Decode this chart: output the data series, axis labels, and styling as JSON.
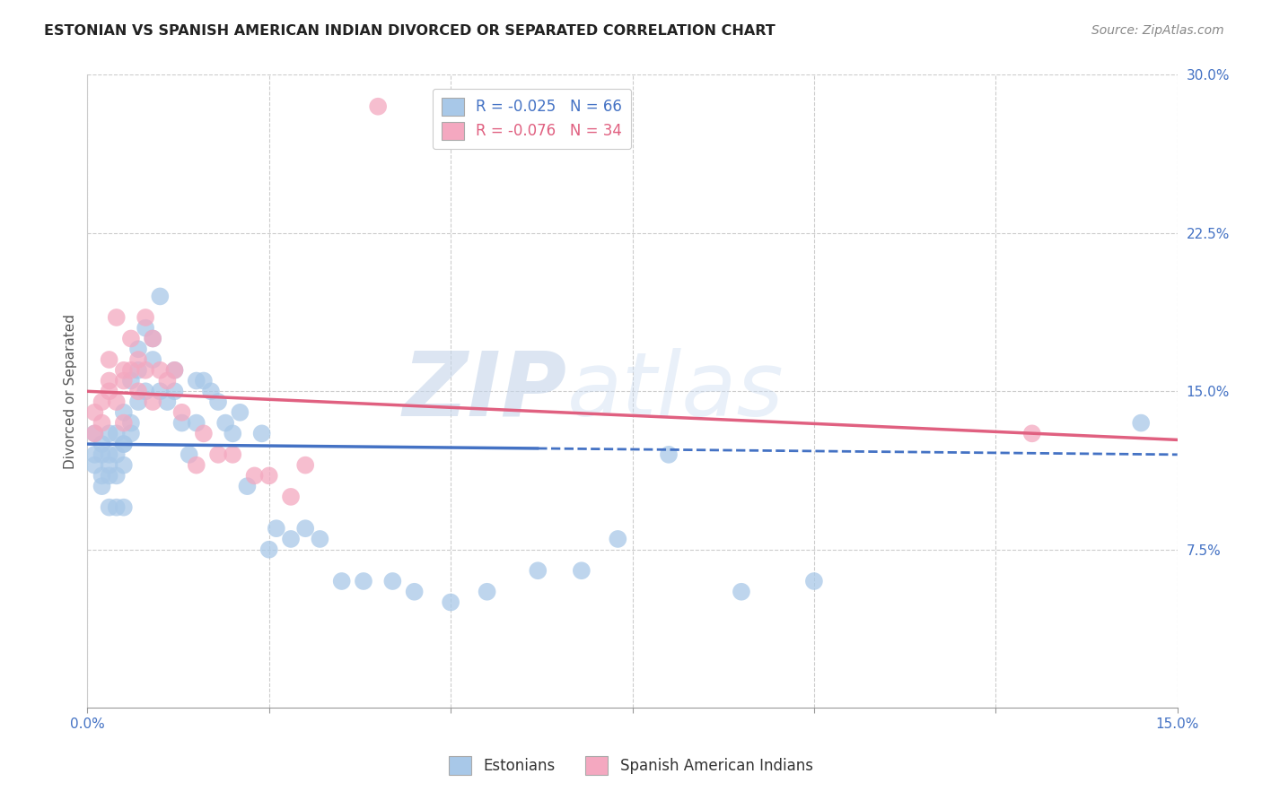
{
  "title": "ESTONIAN VS SPANISH AMERICAN INDIAN DIVORCED OR SEPARATED CORRELATION CHART",
  "source": "Source: ZipAtlas.com",
  "ylabel": "Divorced or Separated",
  "xlim": [
    0.0,
    0.15
  ],
  "ylim": [
    0.0,
    0.3
  ],
  "xticks": [
    0.0,
    0.025,
    0.05,
    0.075,
    0.1,
    0.125,
    0.15
  ],
  "yticks": [
    0.075,
    0.15,
    0.225,
    0.3
  ],
  "xticklabels_show": [
    "0.0%",
    "15.0%"
  ],
  "yticklabels": [
    "7.5%",
    "15.0%",
    "22.5%",
    "30.0%"
  ],
  "r_estonian": -0.025,
  "n_estonian": 66,
  "r_spanish": -0.076,
  "n_spanish": 34,
  "color_estonian": "#a8c8e8",
  "color_spanish": "#f4a8c0",
  "line_color_estonian": "#4472c4",
  "line_color_spanish": "#e06080",
  "background_color": "#ffffff",
  "grid_color": "#cccccc",
  "watermark_zip": "ZIP",
  "watermark_atlas": "atlas",
  "legend_text_blue": "R = -0.025   N = 66",
  "legend_text_pink": "R = -0.076   N = 34",
  "estonian_x": [
    0.001,
    0.001,
    0.001,
    0.002,
    0.002,
    0.002,
    0.002,
    0.003,
    0.003,
    0.003,
    0.003,
    0.003,
    0.004,
    0.004,
    0.004,
    0.004,
    0.005,
    0.005,
    0.005,
    0.005,
    0.005,
    0.006,
    0.006,
    0.006,
    0.007,
    0.007,
    0.007,
    0.008,
    0.008,
    0.009,
    0.009,
    0.01,
    0.01,
    0.011,
    0.012,
    0.012,
    0.013,
    0.014,
    0.015,
    0.015,
    0.016,
    0.017,
    0.018,
    0.019,
    0.02,
    0.021,
    0.022,
    0.024,
    0.025,
    0.026,
    0.028,
    0.03,
    0.032,
    0.035,
    0.038,
    0.042,
    0.045,
    0.05,
    0.055,
    0.062,
    0.068,
    0.073,
    0.08,
    0.09,
    0.1,
    0.145
  ],
  "estonian_y": [
    0.13,
    0.12,
    0.115,
    0.125,
    0.12,
    0.11,
    0.105,
    0.115,
    0.11,
    0.095,
    0.13,
    0.12,
    0.095,
    0.12,
    0.11,
    0.13,
    0.14,
    0.125,
    0.115,
    0.095,
    0.125,
    0.13,
    0.155,
    0.135,
    0.16,
    0.17,
    0.145,
    0.15,
    0.18,
    0.165,
    0.175,
    0.15,
    0.195,
    0.145,
    0.16,
    0.15,
    0.135,
    0.12,
    0.135,
    0.155,
    0.155,
    0.15,
    0.145,
    0.135,
    0.13,
    0.14,
    0.105,
    0.13,
    0.075,
    0.085,
    0.08,
    0.085,
    0.08,
    0.06,
    0.06,
    0.06,
    0.055,
    0.05,
    0.055,
    0.065,
    0.065,
    0.08,
    0.12,
    0.055,
    0.06,
    0.135
  ],
  "spanish_x": [
    0.001,
    0.001,
    0.002,
    0.002,
    0.003,
    0.003,
    0.003,
    0.004,
    0.004,
    0.005,
    0.005,
    0.005,
    0.006,
    0.006,
    0.007,
    0.007,
    0.008,
    0.008,
    0.009,
    0.009,
    0.01,
    0.011,
    0.012,
    0.013,
    0.015,
    0.016,
    0.018,
    0.02,
    0.023,
    0.025,
    0.028,
    0.03,
    0.04,
    0.13
  ],
  "spanish_y": [
    0.13,
    0.14,
    0.145,
    0.135,
    0.155,
    0.15,
    0.165,
    0.185,
    0.145,
    0.155,
    0.16,
    0.135,
    0.175,
    0.16,
    0.165,
    0.15,
    0.185,
    0.16,
    0.175,
    0.145,
    0.16,
    0.155,
    0.16,
    0.14,
    0.115,
    0.13,
    0.12,
    0.12,
    0.11,
    0.11,
    0.1,
    0.115,
    0.285,
    0.13
  ],
  "line_estonian_x0": 0.0,
  "line_estonian_x1": 0.15,
  "line_estonian_y0": 0.125,
  "line_estonian_y1": 0.12,
  "line_estonian_solid_end": 0.062,
  "line_spanish_x0": 0.0,
  "line_spanish_x1": 0.15,
  "line_spanish_y0": 0.15,
  "line_spanish_y1": 0.127
}
